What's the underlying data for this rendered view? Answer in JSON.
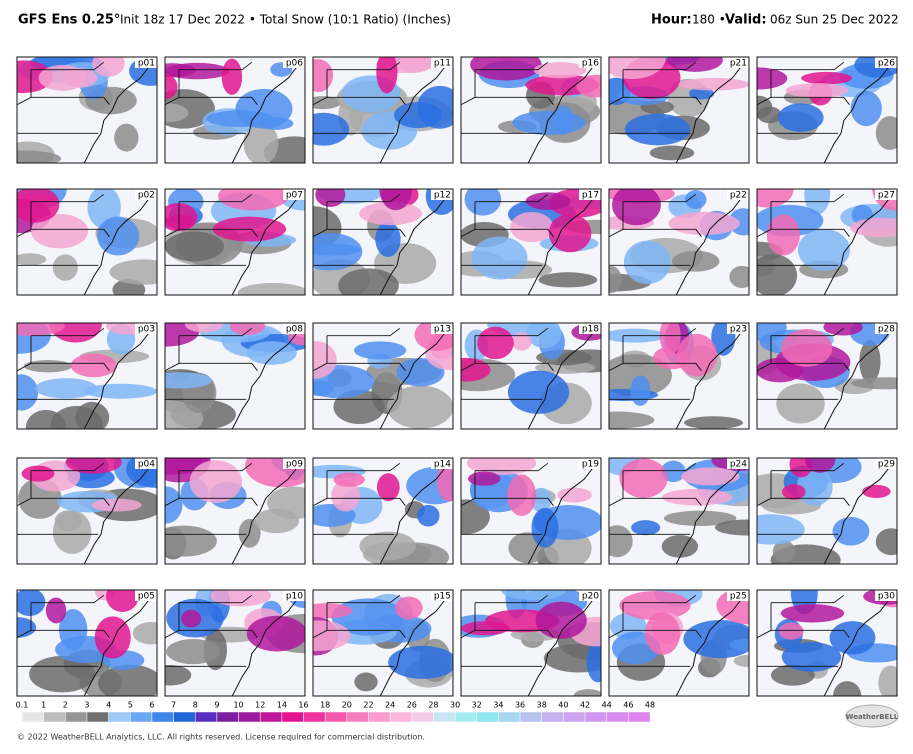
{
  "header": {
    "model": "GFS Ens 0.25°",
    "subtitle": "Init 18z 17 Dec 2022 • Total Snow (10:1 Ratio) (Inches)",
    "hour_label": "Hour:",
    "hour": "180 •",
    "valid_label": "Valid:",
    "valid": "06z Sun 25 Dec 2022"
  },
  "panels": [
    {
      "label": "p01"
    },
    {
      "label": "p06"
    },
    {
      "label": "p11"
    },
    {
      "label": "p16"
    },
    {
      "label": "p21"
    },
    {
      "label": "p26"
    },
    {
      "label": "p02"
    },
    {
      "label": "p07"
    },
    {
      "label": "p12"
    },
    {
      "label": "p17"
    },
    {
      "label": "p22"
    },
    {
      "label": "p27"
    },
    {
      "label": "p03"
    },
    {
      "label": "p08"
    },
    {
      "label": "p13"
    },
    {
      "label": "p18"
    },
    {
      "label": "p23"
    },
    {
      "label": "p28"
    },
    {
      "label": "p04"
    },
    {
      "label": "p09"
    },
    {
      "label": "p14"
    },
    {
      "label": "p19"
    },
    {
      "label": "p24"
    },
    {
      "label": "p29"
    },
    {
      "label": "p05"
    },
    {
      "label": "p10"
    },
    {
      "label": "p15"
    },
    {
      "label": "p20"
    },
    {
      "label": "p25"
    },
    {
      "label": "p30"
    }
  ],
  "colorbar": {
    "labels": [
      0.1,
      1,
      2,
      3,
      4,
      5,
      6,
      7,
      8,
      9,
      10,
      12,
      14,
      16,
      18,
      20,
      22,
      24,
      26,
      28,
      30,
      32,
      34,
      36,
      38,
      40,
      42,
      44,
      46,
      48
    ],
    "colors": [
      "#e6e6e6",
      "#bdbdbd",
      "#969696",
      "#707070",
      "#9ec9f5",
      "#6ba7f0",
      "#3f86ea",
      "#2064d8",
      "#5a2fbf",
      "#7b1fa2",
      "#9c1a9e",
      "#c0169a",
      "#e21590",
      "#f0339e",
      "#f45aae",
      "#f77dbe",
      "#f99ccc",
      "#fbb8da",
      "#f4cde6",
      "#c9e6f5",
      "#a6ecf3",
      "#8fe6ee",
      "#a8d6f0",
      "#b9c2ef",
      "#c4b1ee",
      "#cba3ee",
      "#d197ef",
      "#d88cef",
      "#dd82ee"
    ]
  },
  "footer": "© 2022 WeatherBELL Analytics, LLC. All rights reserved. License required for commercial distribution.",
  "logo": "WeatherBELL"
}
